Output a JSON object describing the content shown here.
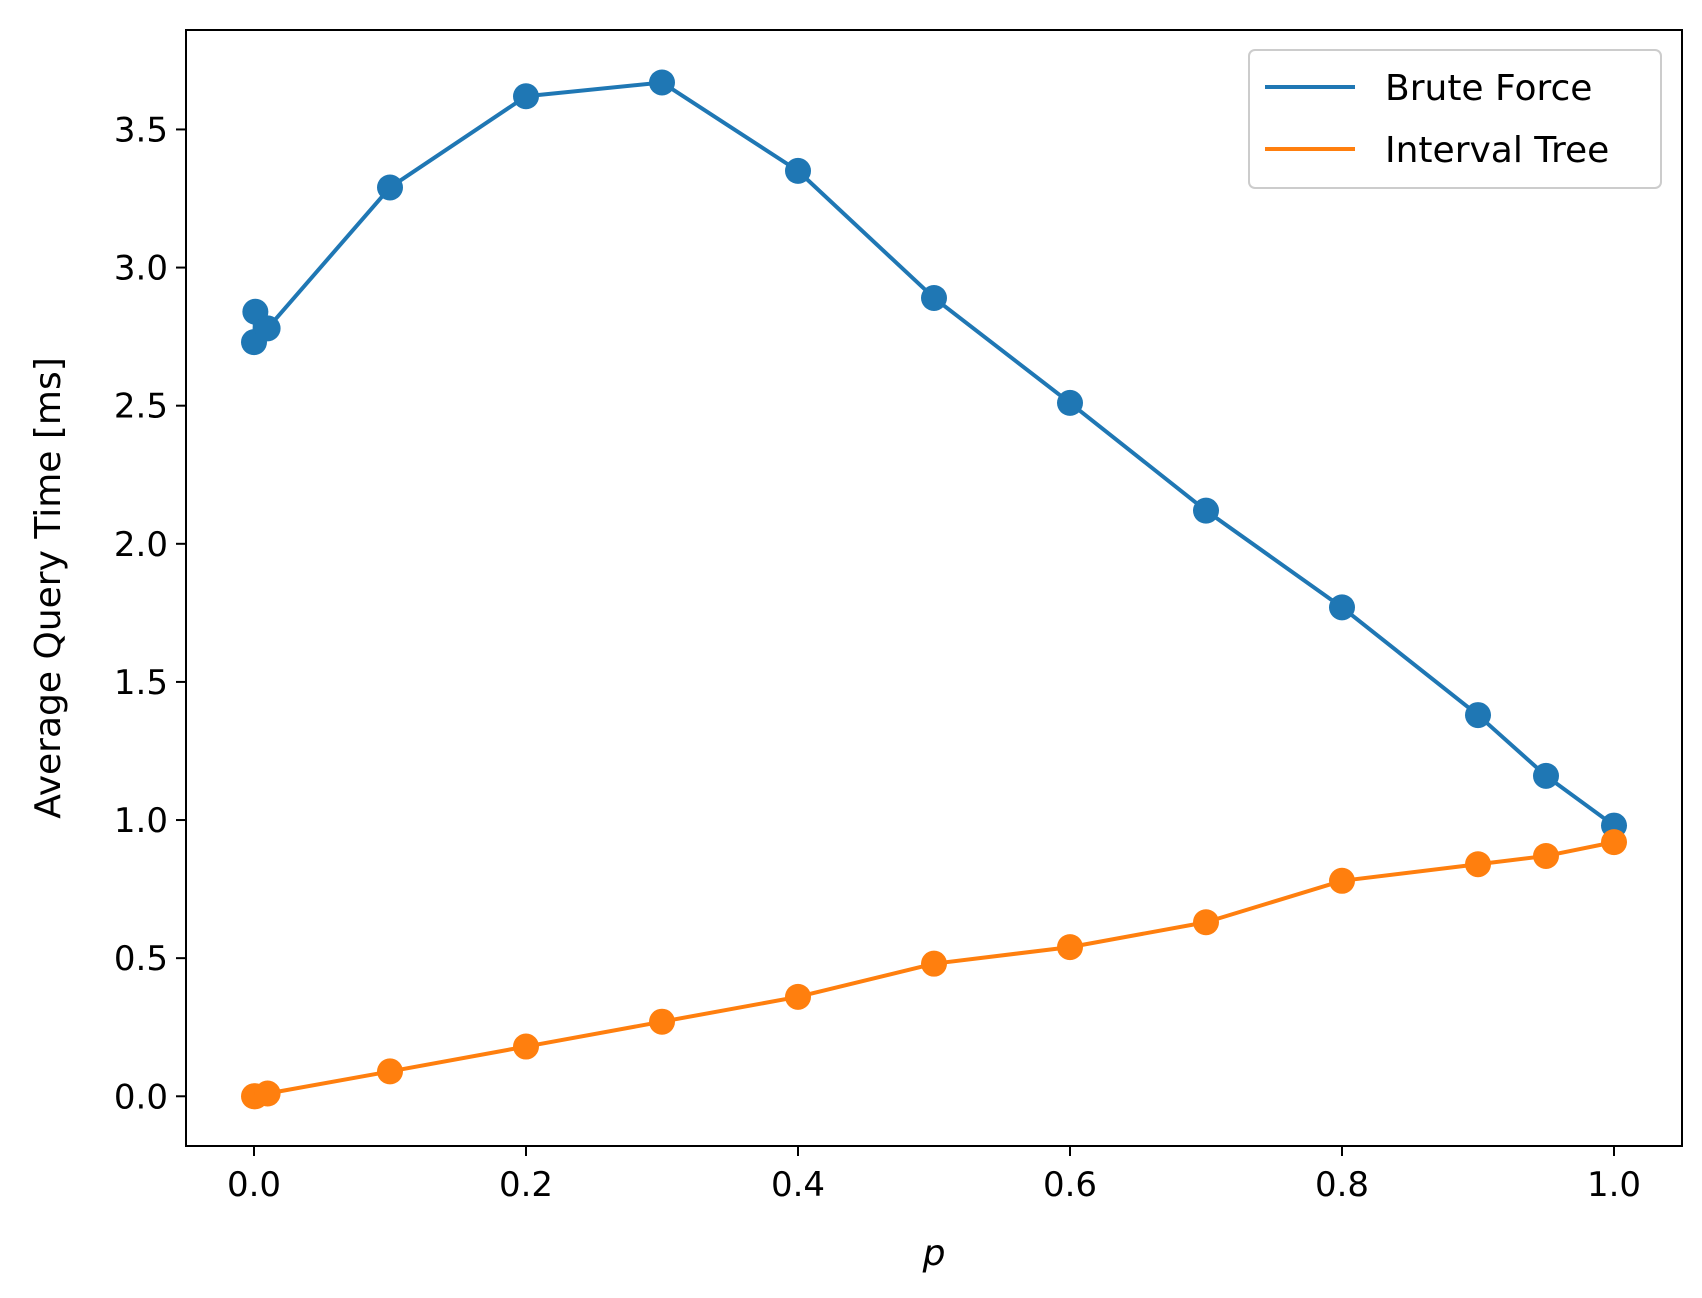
{
  "chart_data": {
    "type": "line",
    "title": "",
    "xlabel": "p",
    "ylabel": "Average Query Time [ms]",
    "xlim": [
      -0.05,
      1.05
    ],
    "ylim": [
      -0.18,
      3.86
    ],
    "xticks": [
      0.0,
      0.2,
      0.4,
      0.6,
      0.8,
      1.0
    ],
    "xtick_labels": [
      "0.0",
      "0.2",
      "0.4",
      "0.6",
      "0.8",
      "1.0"
    ],
    "yticks": [
      0.0,
      0.5,
      1.0,
      1.5,
      2.0,
      2.5,
      3.0,
      3.5
    ],
    "ytick_labels": [
      "0.0",
      "0.5",
      "1.0",
      "1.5",
      "2.0",
      "2.5",
      "3.0",
      "3.5"
    ],
    "grid": false,
    "legend_position": "top-right",
    "series": [
      {
        "name": "Brute Force",
        "color": "#1f77b4",
        "marker": "circle",
        "x": [
          0.0,
          0.001,
          0.01,
          0.1,
          0.2,
          0.3,
          0.4,
          0.5,
          0.6,
          0.7,
          0.8,
          0.9,
          0.95,
          1.0
        ],
        "y": [
          2.73,
          2.84,
          2.78,
          3.29,
          3.62,
          3.67,
          3.35,
          2.89,
          2.51,
          2.12,
          1.77,
          1.38,
          1.16,
          0.98
        ]
      },
      {
        "name": "Interval Tree",
        "color": "#ff7f0e",
        "marker": "circle",
        "x": [
          0.0,
          0.001,
          0.01,
          0.1,
          0.2,
          0.3,
          0.4,
          0.5,
          0.6,
          0.7,
          0.8,
          0.9,
          0.95,
          1.0
        ],
        "y": [
          0.0,
          0.0,
          0.01,
          0.09,
          0.18,
          0.27,
          0.36,
          0.48,
          0.54,
          0.63,
          0.78,
          0.84,
          0.87,
          0.92
        ]
      }
    ]
  }
}
